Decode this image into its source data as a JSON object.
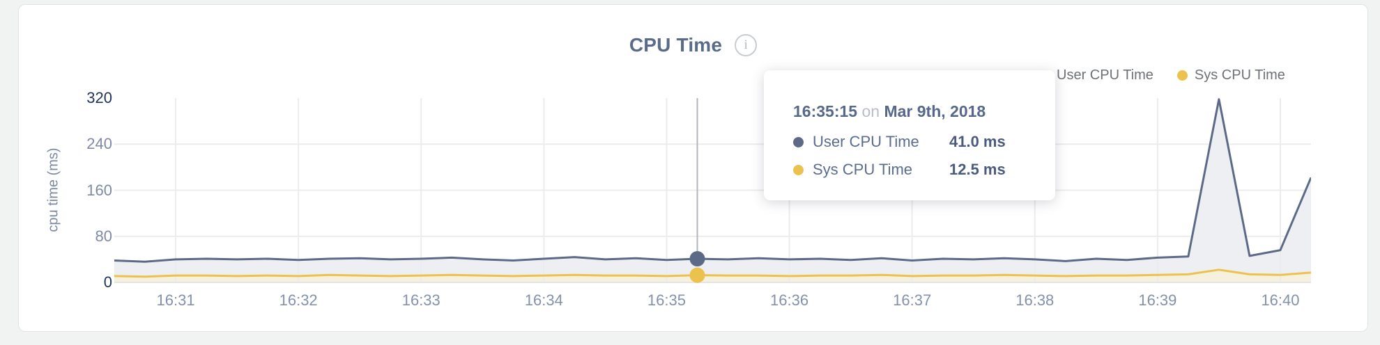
{
  "panel": {
    "title": "CPU Time",
    "info_icon": "i"
  },
  "legend": {
    "items": [
      {
        "label": "User CPU Time",
        "color": "#5c6a87"
      },
      {
        "label": "Sys CPU Time",
        "color": "#ecc24e"
      }
    ]
  },
  "tooltip": {
    "time": "16:35:15",
    "conjunction": "on",
    "date": "Mar 9th, 2018",
    "rows": [
      {
        "label": "User CPU Time",
        "value": "41.0 ms",
        "color": "#5c6a87"
      },
      {
        "label": "Sys CPU Time",
        "value": "12.5 ms",
        "color": "#ecc24e"
      }
    ]
  },
  "chart_data": {
    "type": "area",
    "title": "CPU Time",
    "xlabel": "",
    "ylabel": "cpu time (ms)",
    "ylim": [
      0,
      320
    ],
    "grid": {
      "color": "#ececec",
      "axis_line_color": "#e4e4e4"
    },
    "crosshair_color": "#b2b5ba",
    "y_ticks": [
      {
        "value": 320,
        "label": "320",
        "emphasis": true
      },
      {
        "value": 240,
        "label": "240",
        "emphasis": false
      },
      {
        "value": 160,
        "label": "160",
        "emphasis": false
      },
      {
        "value": 80,
        "label": "80",
        "emphasis": false
      },
      {
        "value": 0,
        "label": "0",
        "emphasis": true
      }
    ],
    "x_ticks": [
      "16:31",
      "16:32",
      "16:33",
      "16:34",
      "16:35",
      "16:36",
      "16:37",
      "16:38",
      "16:39",
      "16:40"
    ],
    "x": [
      "16:30:30",
      "16:30:45",
      "16:31:00",
      "16:31:15",
      "16:31:30",
      "16:31:45",
      "16:32:00",
      "16:32:15",
      "16:32:30",
      "16:32:45",
      "16:33:00",
      "16:33:15",
      "16:33:30",
      "16:33:45",
      "16:34:00",
      "16:34:15",
      "16:34:30",
      "16:34:45",
      "16:35:00",
      "16:35:15",
      "16:35:30",
      "16:35:45",
      "16:36:00",
      "16:36:15",
      "16:36:30",
      "16:36:45",
      "16:37:00",
      "16:37:15",
      "16:37:30",
      "16:37:45",
      "16:38:00",
      "16:38:15",
      "16:38:30",
      "16:38:45",
      "16:39:00",
      "16:39:15",
      "16:39:30",
      "16:39:45",
      "16:40:00",
      "16:40:15"
    ],
    "series": [
      {
        "name": "User CPU Time",
        "color": "#5c6a87",
        "fill": "#edeff3",
        "values": [
          38,
          36,
          40,
          41,
          40,
          41,
          39,
          41,
          42,
          40,
          41,
          43,
          40,
          38,
          41,
          44,
          40,
          42,
          39,
          41,
          40,
          42,
          40,
          41,
          39,
          42,
          38,
          41,
          40,
          42,
          40,
          37,
          41,
          39,
          43,
          45,
          318,
          46,
          56,
          182
        ]
      },
      {
        "name": "Sys CPU Time",
        "color": "#ecc24e",
        "fill": "#f6f0df",
        "values": [
          11,
          10,
          12,
          12,
          11,
          12,
          11,
          13,
          12,
          11,
          12,
          13,
          12,
          11,
          12,
          13,
          12,
          12,
          11,
          12.5,
          12,
          12,
          11,
          12,
          12,
          13,
          11,
          12,
          12,
          13,
          12,
          11,
          12,
          12,
          13,
          14,
          22,
          14,
          13,
          17
        ]
      }
    ],
    "hover": {
      "index": 19,
      "time": "16:35:15",
      "user_ms": 41.0,
      "sys_ms": 12.5
    },
    "legend_position": "top-right"
  }
}
